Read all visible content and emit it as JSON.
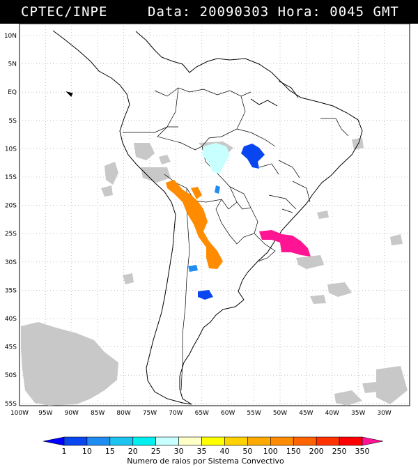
{
  "header": {
    "left": "CPTEC/INPE",
    "right_parts": [
      "Data:",
      "20090303",
      "Hora:",
      "0045",
      "GMT"
    ]
  },
  "map": {
    "lat_labels": [
      "10N",
      "5N",
      "EQ",
      "5S",
      "10S",
      "15S",
      "20S",
      "25S",
      "30S",
      "35S",
      "40S",
      "45S",
      "50S",
      "55S"
    ],
    "lon_labels": [
      "100W",
      "95W",
      "90W",
      "85W",
      "80W",
      "75W",
      "70W",
      "65W",
      "60W",
      "55W",
      "50W",
      "45W",
      "40W",
      "35W",
      "30W"
    ]
  },
  "colorbar": {
    "labels": [
      "1",
      "10",
      "15",
      "20",
      "25",
      "30",
      "35",
      "40",
      "50",
      "100",
      "150",
      "200",
      "250",
      "350"
    ],
    "colors": [
      "#0000ff",
      "#0a46f0",
      "#1e8cf0",
      "#1ec4f0",
      "#00f0f0",
      "#c8ffff",
      "#ffffc8",
      "#ffff00",
      "#ffd200",
      "#ffaa00",
      "#ff8c00",
      "#ff6400",
      "#ff3200",
      "#ff0000",
      "#ff1493"
    ],
    "caption": "Numero de raios por Sistema Convectivo"
  }
}
